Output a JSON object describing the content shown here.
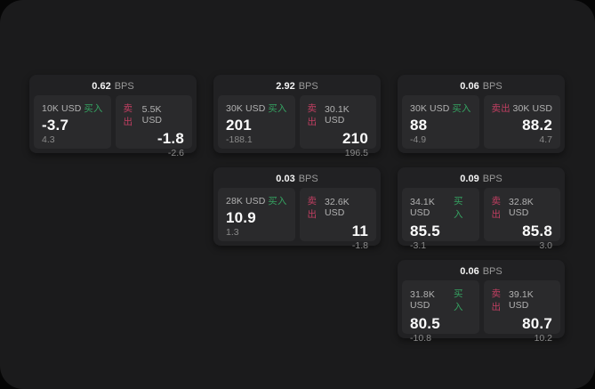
{
  "labels": {
    "bps_unit": "BPS",
    "buy": "买入",
    "sell": "卖出"
  },
  "colors": {
    "background": "#060606",
    "panel_bg": "#1b1b1c",
    "card_bg": "#212123",
    "tile_bg": "#2a2a2c",
    "buy_green": "#35a261",
    "sell_red": "#c13f62"
  },
  "cards": [
    {
      "bps": "0.62",
      "buy": {
        "amount": "10K USD",
        "value": "-3.7",
        "sub": "4.3"
      },
      "sell": {
        "amount": "5.5K USD",
        "value": "-1.8",
        "sub": "-2.6"
      }
    },
    {
      "bps": "2.92",
      "buy": {
        "amount": "30K USD",
        "value": "201",
        "sub": "-188.1"
      },
      "sell": {
        "amount": "30.1K USD",
        "value": "210",
        "sub": "196.5"
      }
    },
    {
      "bps": "0.06",
      "buy": {
        "amount": "30K USD",
        "value": "88",
        "sub": "-4.9"
      },
      "sell": {
        "amount": "30K USD",
        "value": "88.2",
        "sub": "4.7"
      }
    },
    {
      "bps": "0.03",
      "buy": {
        "amount": "28K USD",
        "value": "10.9",
        "sub": "1.3"
      },
      "sell": {
        "amount": "32.6K USD",
        "value": "11",
        "sub": "-1.8"
      }
    },
    {
      "bps": "0.09",
      "buy": {
        "amount": "34.1K USD",
        "value": "85.5",
        "sub": "-3.1"
      },
      "sell": {
        "amount": "32.8K USD",
        "value": "85.8",
        "sub": "3.0"
      }
    },
    {
      "bps": "0.06",
      "buy": {
        "amount": "31.8K USD",
        "value": "80.5",
        "sub": "-10.8"
      },
      "sell": {
        "amount": "39.1K USD",
        "value": "80.7",
        "sub": "10.2"
      }
    }
  ]
}
